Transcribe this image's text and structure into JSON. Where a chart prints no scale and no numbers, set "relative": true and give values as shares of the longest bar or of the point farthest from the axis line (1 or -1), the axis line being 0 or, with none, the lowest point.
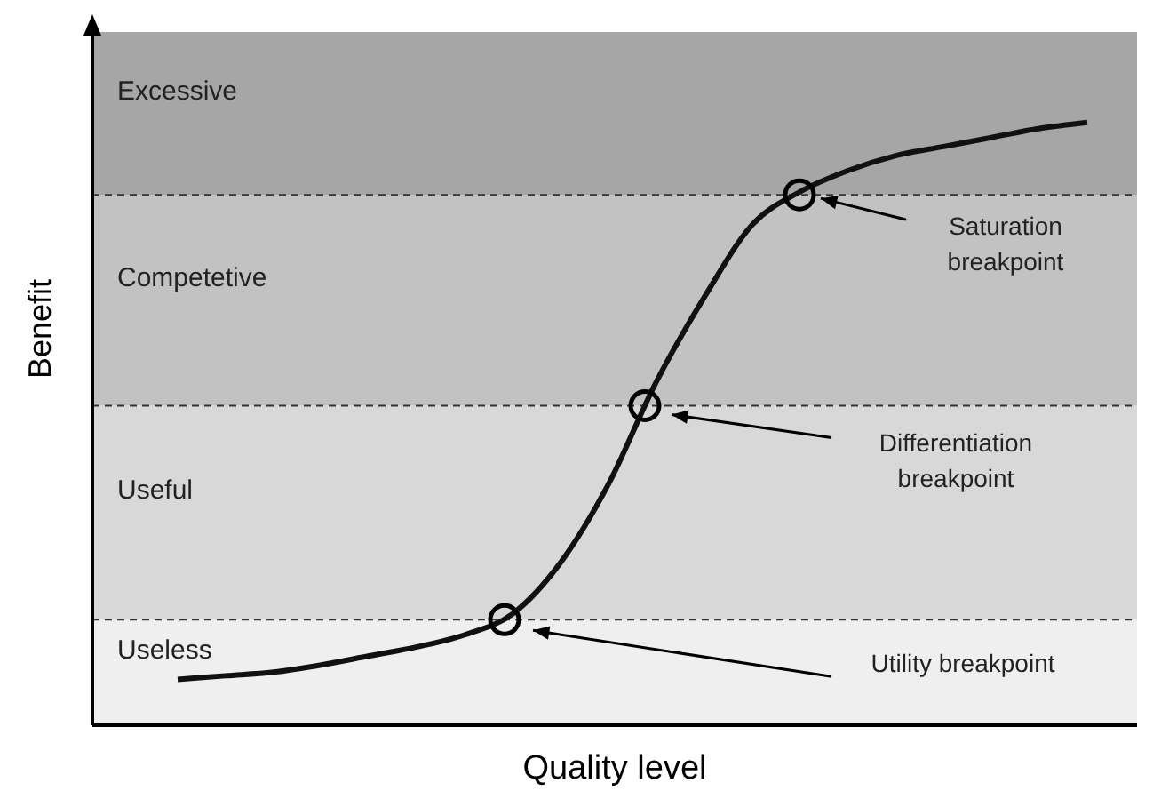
{
  "chart_data": {
    "type": "line",
    "relative": true,
    "xlabel": "Quality level",
    "ylabel": "Benefit",
    "categories": [
      null,
      null,
      null,
      null,
      null,
      null,
      null,
      null,
      null,
      null,
      null,
      null,
      null,
      null,
      null,
      null,
      null,
      null,
      null,
      null
    ],
    "series": [
      {
        "color": "#111111",
        "values": [
          0.076,
          0.082,
          0.088,
          0.1,
          0.115,
          0.13,
          0.15,
          0.185,
          0.27,
          0.4,
          0.57,
          0.71,
          0.83,
          0.885,
          0.92,
          0.945,
          0.96,
          0.975,
          0.99,
          1
        ]
      }
    ],
    "marker": "none",
    "line_style": "solid",
    "grid": false,
    "bands": [
      {
        "axis": "y",
        "from": 0,
        "to": 0.175,
        "label": "Useless",
        "color": "#efefef"
      },
      {
        "axis": "y",
        "from": 0.175,
        "to": 0.53,
        "label": "Useful",
        "color": "#d8d8d8"
      },
      {
        "axis": "y",
        "from": 0.53,
        "to": 0.88,
        "label": "Competetive",
        "color": "#c2c2c2"
      },
      {
        "axis": "y",
        "from": 0.88,
        "to": 1.15,
        "label": "Excessive",
        "color": "#a6a6a6"
      }
    ],
    "ref_lines": [
      {
        "axis": "y",
        "value": 0.175,
        "color": "#333333",
        "line_style": "dashed"
      },
      {
        "axis": "y",
        "value": 0.53,
        "color": "#333333",
        "line_style": "dashed"
      },
      {
        "axis": "y",
        "value": 0.88,
        "color": "#333333",
        "line_style": "dashed"
      }
    ],
    "annotations": [
      {
        "text": "Saturation breakpoint",
        "y": 0.88
      },
      {
        "text": "Differentiation breakpoint",
        "y": 0.53
      },
      {
        "text": "Utility breakpoint",
        "y": 0.175
      }
    ]
  }
}
